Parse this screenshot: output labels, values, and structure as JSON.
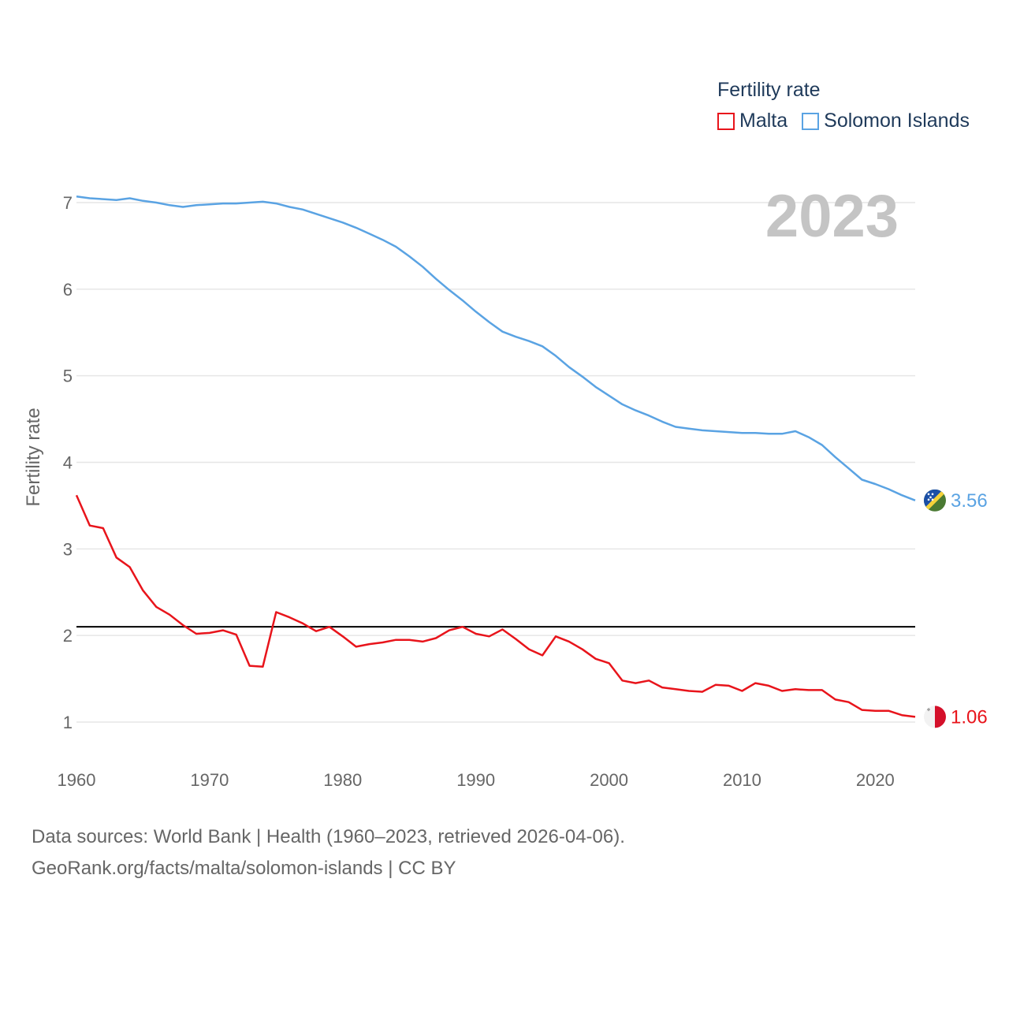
{
  "legend": {
    "title": "Fertility rate",
    "items": [
      {
        "label": "Malta",
        "color": "#e8141b"
      },
      {
        "label": "Solomon Islands",
        "color": "#5aa3e3"
      }
    ]
  },
  "year_display": "2023",
  "footer": {
    "line1": "Data sources: World Bank | Health (1960–2023, retrieved 2026-04-06).",
    "line2": "GeoRank.org/facts/malta/solomon-islands | CC BY"
  },
  "chart_data": {
    "type": "line",
    "title": "Fertility rate",
    "xlabel": "",
    "ylabel": "Fertility rate",
    "xlim": [
      1960,
      2023
    ],
    "ylim": [
      0.5,
      7.5
    ],
    "grid": true,
    "legend_position": "top-right",
    "x_ticks": [
      1960,
      1970,
      1980,
      1990,
      2000,
      2010,
      2020
    ],
    "y_ticks": [
      1,
      2,
      3,
      4,
      5,
      6,
      7
    ],
    "reference_line": {
      "y": 2.1,
      "color": "#000000"
    },
    "x": [
      1960,
      1961,
      1962,
      1963,
      1964,
      1965,
      1966,
      1967,
      1968,
      1969,
      1970,
      1971,
      1972,
      1973,
      1974,
      1975,
      1976,
      1977,
      1978,
      1979,
      1980,
      1981,
      1982,
      1983,
      1984,
      1985,
      1986,
      1987,
      1988,
      1989,
      1990,
      1991,
      1992,
      1993,
      1994,
      1995,
      1996,
      1997,
      1998,
      1999,
      2000,
      2001,
      2002,
      2003,
      2004,
      2005,
      2006,
      2007,
      2008,
      2009,
      2010,
      2011,
      2012,
      2013,
      2014,
      2015,
      2016,
      2017,
      2018,
      2019,
      2020,
      2021,
      2022,
      2023
    ],
    "series": [
      {
        "name": "Malta",
        "color": "#e8141b",
        "end_label": "1.06",
        "values": [
          3.62,
          3.27,
          3.24,
          2.9,
          2.79,
          2.52,
          2.33,
          2.24,
          2.12,
          2.02,
          2.03,
          2.06,
          2.01,
          1.65,
          1.64,
          2.27,
          2.21,
          2.14,
          2.05,
          2.1,
          1.99,
          1.87,
          1.9,
          1.92,
          1.95,
          1.95,
          1.93,
          1.97,
          2.06,
          2.1,
          2.02,
          1.99,
          2.07,
          1.96,
          1.84,
          1.77,
          1.99,
          1.93,
          1.84,
          1.73,
          1.68,
          1.48,
          1.45,
          1.48,
          1.4,
          1.38,
          1.36,
          1.35,
          1.43,
          1.42,
          1.36,
          1.45,
          1.42,
          1.36,
          1.38,
          1.37,
          1.37,
          1.26,
          1.23,
          1.14,
          1.13,
          1.13,
          1.08,
          1.06
        ]
      },
      {
        "name": "Solomon Islands",
        "color": "#5aa3e3",
        "end_label": "3.56",
        "values": [
          7.07,
          7.05,
          7.04,
          7.03,
          7.05,
          7.02,
          7.0,
          6.97,
          6.95,
          6.97,
          6.98,
          6.99,
          6.99,
          7.0,
          7.01,
          6.99,
          6.95,
          6.92,
          6.87,
          6.82,
          6.77,
          6.71,
          6.64,
          6.57,
          6.49,
          6.38,
          6.26,
          6.12,
          5.99,
          5.87,
          5.74,
          5.62,
          5.51,
          5.45,
          5.4,
          5.34,
          5.23,
          5.1,
          4.99,
          4.87,
          4.77,
          4.67,
          4.6,
          4.54,
          4.47,
          4.41,
          4.39,
          4.37,
          4.36,
          4.35,
          4.34,
          4.34,
          4.33,
          4.33,
          4.36,
          4.29,
          4.2,
          4.06,
          3.93,
          3.8,
          3.75,
          3.69,
          3.62,
          3.56
        ]
      }
    ]
  }
}
